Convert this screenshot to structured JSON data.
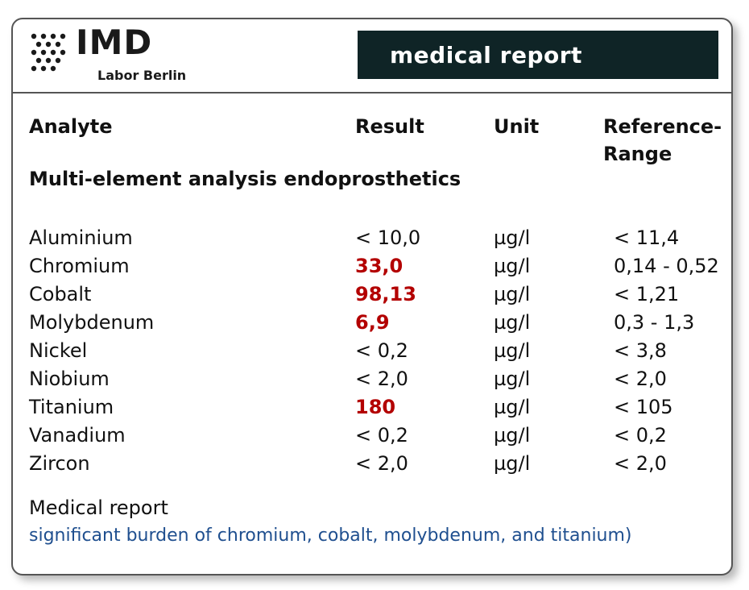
{
  "logo": {
    "name": "IMD",
    "subtitle": "Labor Berlin"
  },
  "banner": {
    "title": "medical report"
  },
  "columns": {
    "analyte": "Analyte",
    "result": "Result",
    "unit": "Unit",
    "reference_line1": "Reference-",
    "reference_line2": "Range"
  },
  "section_title": "Multi-element analysis endoprosthetics",
  "rows": [
    {
      "analyte": "Aluminium",
      "result": "< 10,0",
      "unit": "µg/l",
      "reference": "< 11,4",
      "flagged": false
    },
    {
      "analyte": "Chromium",
      "result": "33,0",
      "unit": "µg/l",
      "reference": "0,14 - 0,52",
      "flagged": true
    },
    {
      "analyte": "Cobalt",
      "result": "98,13",
      "unit": "µg/l",
      "reference": "< 1,21",
      "flagged": true
    },
    {
      "analyte": "Molybdenum",
      "result": "6,9",
      "unit": "µg/l",
      "reference": "0,3 - 1,3",
      "flagged": true
    },
    {
      "analyte": "Nickel",
      "result": "< 0,2",
      "unit": "µg/l",
      "reference": "< 3,8",
      "flagged": false
    },
    {
      "analyte": "Niobium",
      "result": "< 2,0",
      "unit": "µg/l",
      "reference": "< 2,0",
      "flagged": false
    },
    {
      "analyte": "Titanium",
      "result": "180",
      "unit": "µg/l",
      "reference": "< 105",
      "flagged": true
    },
    {
      "analyte": "Vanadium",
      "result": "< 0,2",
      "unit": "µg/l",
      "reference": "< 0,2",
      "flagged": false
    },
    {
      "analyte": "Zircon",
      "result": "< 2,0",
      "unit": "µg/l",
      "reference": "< 2,0",
      "flagged": false
    }
  ],
  "note": {
    "label": "Medical report",
    "text": "significant burden of chromium, cobalt, molybdenum, and titanium)"
  },
  "colors": {
    "banner_bg": "#0f2426",
    "flag_red": "#b30000",
    "note_blue": "#1f4f8f"
  }
}
